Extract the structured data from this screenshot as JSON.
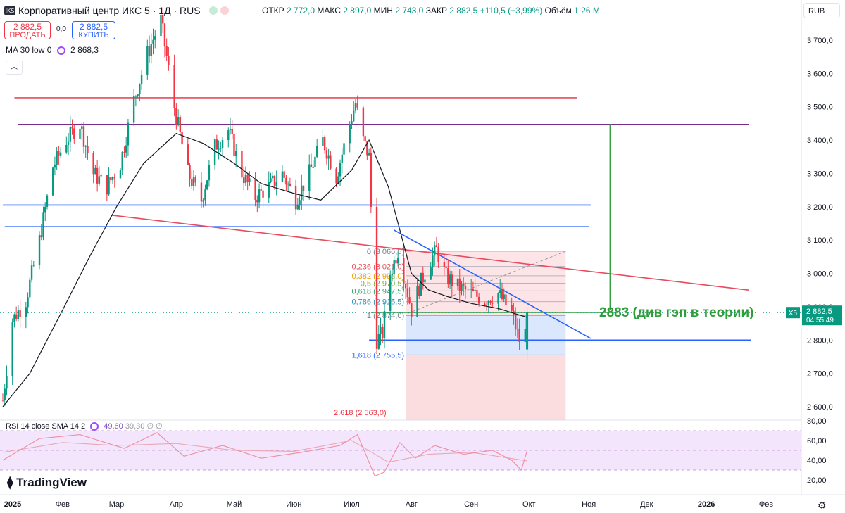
{
  "header": {
    "logo_text": "IKS",
    "title": "Корпоративный центр ИКС 5 · 1Д · RUS",
    "ohlc": [
      {
        "k": "ОТКР",
        "v": "2 772,0"
      },
      {
        "k": "МАКС",
        "v": "2 897,0"
      },
      {
        "k": "МИН",
        "v": "2 743,0"
      },
      {
        "k": "ЗАКР",
        "v": "2 882,5"
      },
      {
        "k": "",
        "v": "+110,5 (+3,99%)"
      },
      {
        "k": "Объём",
        "v": "1,26 M"
      }
    ],
    "sell_price": "2 882,5",
    "sell_label": "ПРОДАТЬ",
    "spread": "0,0",
    "buy_price": "2 882,5",
    "buy_label": "КУПИТЬ",
    "ma_label": "MA 30 low 0",
    "ma_value": "2 868,3",
    "currency": "RUB",
    "collapse_icon": "chevron-up-icon"
  },
  "rsi": {
    "label": "RSI 14 close SMA 14 2",
    "value1": "49,60",
    "value2": "39,30",
    "extra": "∅ ∅"
  },
  "branding": "TradingView",
  "colors": {
    "up": "#089981",
    "down": "#f23645",
    "ma": "#131722",
    "blue": "#2962ff",
    "red": "#e84a5f",
    "purple": "#7b2d8e",
    "green": "#2e9e3b"
  },
  "chart_data": {
    "type": "candlestick",
    "title": "Корпоративный центр ИКС 5 · 1Д · RUS",
    "y_ticks": [
      "3 700,0",
      "3 600,0",
      "3 500,0",
      "3 400,0",
      "3 300,0",
      "3 200,0",
      "3 100,0",
      "3 000,0",
      "2 900,0",
      "2 800,0",
      "2 700,0",
      "2 600,0"
    ],
    "y_tick_values": [
      3700,
      3600,
      3500,
      3400,
      3300,
      3200,
      3100,
      3000,
      2900,
      2800,
      2700,
      2600
    ],
    "ylim": [
      2570,
      3800
    ],
    "x_ticks": [
      "2025",
      "Фев",
      "Мар",
      "Апр",
      "Май",
      "Июн",
      "Июл",
      "Авг",
      "Сен",
      "Окт",
      "Ноя",
      "Дек",
      "2026",
      "Фев"
    ],
    "x_tick_dates": [
      "2025-01-01",
      "2025-02-01",
      "2025-03-01",
      "2025-04-01",
      "2025-05-01",
      "2025-06-01",
      "2025-07-01",
      "2025-08-01",
      "2025-09-01",
      "2025-10-01",
      "2025-11-01",
      "2025-12-01",
      "2026-01-01",
      "2026-02-01"
    ],
    "close_path": [
      [
        "2025-01-01",
        2620
      ],
      [
        "2025-01-06",
        2860
      ],
      [
        "2025-01-13",
        2920
      ],
      [
        "2025-01-20",
        3100
      ],
      [
        "2025-01-27",
        3320
      ],
      [
        "2025-02-03",
        3400
      ],
      [
        "2025-02-10",
        3450
      ],
      [
        "2025-02-17",
        3300
      ],
      [
        "2025-02-24",
        3260
      ],
      [
        "2025-03-03",
        3330
      ],
      [
        "2025-03-10",
        3520
      ],
      [
        "2025-03-17",
        3660
      ],
      [
        "2025-03-24",
        3760
      ],
      [
        "2025-03-31",
        3500
      ],
      [
        "2025-04-07",
        3300
      ],
      [
        "2025-04-14",
        3220
      ],
      [
        "2025-04-21",
        3380
      ],
      [
        "2025-04-28",
        3430
      ],
      [
        "2025-05-05",
        3300
      ],
      [
        "2025-05-12",
        3230
      ],
      [
        "2025-05-19",
        3260
      ],
      [
        "2025-05-26",
        3300
      ],
      [
        "2025-06-02",
        3220
      ],
      [
        "2025-06-09",
        3300
      ],
      [
        "2025-06-16",
        3400
      ],
      [
        "2025-06-23",
        3290
      ],
      [
        "2025-06-30",
        3450
      ],
      [
        "2025-07-03",
        3510
      ],
      [
        "2025-07-07",
        3400
      ],
      [
        "2025-07-10",
        3350
      ],
      [
        "2025-07-12",
        3050
      ],
      [
        "2025-07-14",
        2800
      ],
      [
        "2025-07-17",
        2820
      ],
      [
        "2025-07-21",
        3000
      ],
      [
        "2025-07-25",
        3070
      ],
      [
        "2025-07-29",
        2970
      ],
      [
        "2025-08-01",
        2890
      ],
      [
        "2025-08-05",
        2960
      ],
      [
        "2025-08-10",
        3030
      ],
      [
        "2025-08-14",
        3070
      ],
      [
        "2025-08-19",
        2990
      ],
      [
        "2025-08-25",
        2960
      ],
      [
        "2025-09-01",
        2940
      ],
      [
        "2025-09-08",
        2920
      ],
      [
        "2025-09-15",
        2940
      ],
      [
        "2025-09-22",
        2880
      ],
      [
        "2025-09-26",
        2800
      ],
      [
        "2025-09-28",
        2760
      ],
      [
        "2025-09-30",
        2882.5
      ]
    ],
    "ma30_low": [
      [
        "2025-01-01",
        2600
      ],
      [
        "2025-01-15",
        2700
      ],
      [
        "2025-02-01",
        2890
      ],
      [
        "2025-02-15",
        3050
      ],
      [
        "2025-03-01",
        3200
      ],
      [
        "2025-03-15",
        3330
      ],
      [
        "2025-04-01",
        3420
      ],
      [
        "2025-04-15",
        3390
      ],
      [
        "2025-05-01",
        3330
      ],
      [
        "2025-05-15",
        3270
      ],
      [
        "2025-06-01",
        3240
      ],
      [
        "2025-06-15",
        3220
      ],
      [
        "2025-07-01",
        3310
      ],
      [
        "2025-07-10",
        3400
      ],
      [
        "2025-07-20",
        3260
      ],
      [
        "2025-08-01",
        3000
      ],
      [
        "2025-08-10",
        2950
      ],
      [
        "2025-08-20",
        2930
      ],
      [
        "2025-09-01",
        2910
      ],
      [
        "2025-09-15",
        2895
      ],
      [
        "2025-09-30",
        2868.3
      ]
    ],
    "drawings": {
      "horizontal": [
        {
          "color": "red",
          "y": 3527,
          "x_from": "2025-01-07",
          "x_to": "2025-10-26"
        },
        {
          "color": "purple",
          "y": 3447,
          "x_from": "2025-01-09",
          "x_to": "2026-01-23"
        },
        {
          "color": "blue",
          "y": 3205,
          "x_from": "2025-01-01",
          "x_to": "2025-11-02"
        },
        {
          "color": "blue",
          "y": 3140,
          "x_from": "2025-01-02",
          "x_to": "2025-11-01"
        },
        {
          "color": "blue",
          "y": 2800,
          "x_from": "2025-07-10",
          "x_to": "2026-01-24"
        },
        {
          "color": "green",
          "y": 2883,
          "x_from": "2025-07-11",
          "x_to": "2025-11-14"
        }
      ],
      "trendlines": [
        {
          "color": "red",
          "from": [
            "2025-02-26",
            3175
          ],
          "to": [
            "2026-01-23",
            2950
          ]
        },
        {
          "color": "blue",
          "from": [
            "2025-07-23",
            3130
          ],
          "to": [
            "2025-11-02",
            2805
          ]
        }
      ],
      "green_vertical": {
        "x": "2025-11-12",
        "y_from": 2891,
        "y_to": 3448
      }
    },
    "fibonacci": [
      {
        "label": "0 (3 066,5)",
        "value": 3066.5
      },
      {
        "label": "0,236 (3 021,0)",
        "value": 3021.0
      },
      {
        "label": "0,382 (2 993,0)",
        "value": 2993.0
      },
      {
        "label": "0,5 (2 970,5)",
        "value": 2970.5
      },
      {
        "label": "0,618 (2 947,5)",
        "value": 2947.5
      },
      {
        "label": "0,786 (2 915,5)",
        "value": 2915.5
      },
      {
        "label": "1 (2 874,0)",
        "value": 2874.0
      },
      {
        "label": "1,618 (2 755,5)",
        "value": 2755.5
      },
      {
        "label": "2,618 (2 563,0)",
        "value": 2563.0
      }
    ],
    "annotation": "2883 (див гэп в теории)",
    "price_tag": {
      "symbol": "X5",
      "price": "2 882,5",
      "timer": "04:55:49",
      "value": 2882.5
    },
    "rsi_panel": {
      "y_ticks": [
        "80,00",
        "60,00",
        "40,00",
        "20,00"
      ],
      "y_tick_values": [
        80,
        60,
        40,
        20
      ],
      "ylim": [
        15,
        85
      ],
      "band": [
        30,
        70
      ],
      "rsi_last": 49.6,
      "sma_last": 39.3,
      "rsi_path": [
        [
          "2025-01-01",
          40
        ],
        [
          "2025-01-20",
          62
        ],
        [
          "2025-02-10",
          66
        ],
        [
          "2025-03-05",
          52
        ],
        [
          "2025-03-22",
          68
        ],
        [
          "2025-04-05",
          44
        ],
        [
          "2025-04-25",
          55
        ],
        [
          "2025-05-15",
          42
        ],
        [
          "2025-06-05",
          48
        ],
        [
          "2025-06-25",
          55
        ],
        [
          "2025-07-04",
          66
        ],
        [
          "2025-07-13",
          24
        ],
        [
          "2025-07-18",
          28
        ],
        [
          "2025-07-26",
          58
        ],
        [
          "2025-08-03",
          42
        ],
        [
          "2025-08-13",
          55
        ],
        [
          "2025-08-28",
          46
        ],
        [
          "2025-09-12",
          50
        ],
        [
          "2025-09-22",
          40
        ],
        [
          "2025-09-27",
          30
        ],
        [
          "2025-09-30",
          49.6
        ]
      ],
      "sma_path": [
        [
          "2025-01-01",
          48
        ],
        [
          "2025-02-01",
          58
        ],
        [
          "2025-03-01",
          55
        ],
        [
          "2025-04-01",
          57
        ],
        [
          "2025-05-01",
          50
        ],
        [
          "2025-06-01",
          49
        ],
        [
          "2025-07-01",
          60
        ],
        [
          "2025-07-20",
          38
        ],
        [
          "2025-08-10",
          46
        ],
        [
          "2025-09-01",
          48
        ],
        [
          "2025-09-30",
          39.3
        ]
      ]
    }
  }
}
